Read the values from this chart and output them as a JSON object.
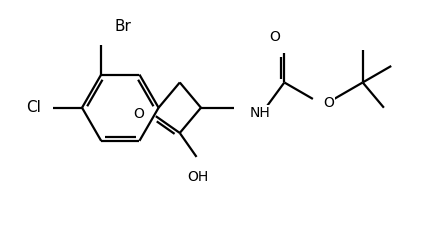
{
  "bg_color": "#ffffff",
  "line_color": "#000000",
  "line_width": 1.6,
  "font_size": 10,
  "fig_width": 4.32,
  "fig_height": 2.42,
  "dpi": 100,
  "xlim": [
    0.0,
    8.0
  ],
  "ylim": [
    0.0,
    4.5
  ]
}
